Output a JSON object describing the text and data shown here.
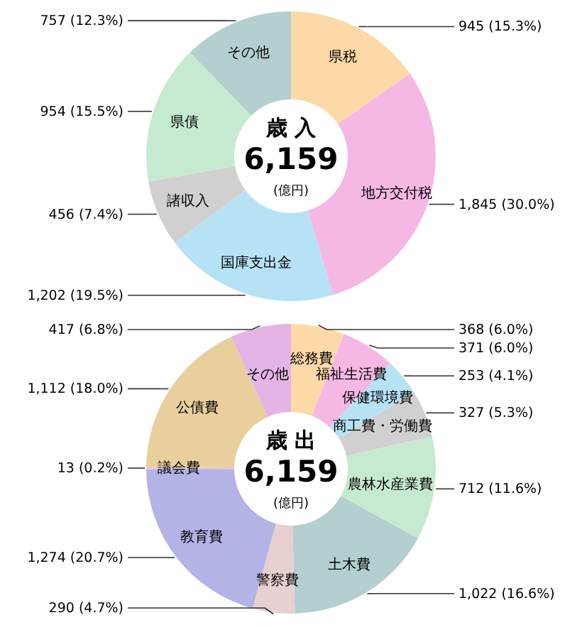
{
  "chart_data": [
    {
      "type": "donut",
      "title": "歳 入",
      "annotations": [
        "6,159",
        "(億円)"
      ],
      "categories": [
        "県税",
        "地方交付税",
        "国庫支出金",
        "諸収入",
        "県債",
        "その他"
      ],
      "values": [
        945,
        1845,
        1202,
        456,
        954,
        757
      ],
      "value_labels": [
        "945 (15.3%)",
        "1,845 (30.0%)",
        "1,202 (19.5%)",
        "456 (7.4%)",
        "954 (15.5%)",
        "757 (12.3%)"
      ],
      "colors": [
        "#fdd9a8",
        "#f5b8e4",
        "#b6e2f5",
        "#d0d0d0",
        "#c6eacf",
        "#b3cfcf"
      ]
    },
    {
      "type": "donut",
      "title": "歳 出",
      "annotations": [
        "6,159",
        "(億円)"
      ],
      "categories": [
        "総務費",
        "福祉生活費",
        "保健環境費",
        "商工費・労働費",
        "農林水産業費",
        "土木費",
        "警察費",
        "教育費",
        "議会費",
        "公債費",
        "その他"
      ],
      "values": [
        368,
        371,
        253,
        327,
        712,
        1022,
        290,
        1274,
        13,
        1112,
        417
      ],
      "value_labels": [
        "368 (6.0%)",
        "371 (6.0%)",
        "253 (4.1%)",
        "327 (5.3%)",
        "712 (11.6%)",
        "1,022 (16.6%)",
        "290 (4.7%)",
        "1,274 (20.7%)",
        "13 (0.2%)",
        "1,112 (18.0%)",
        "417 (6.8%)"
      ],
      "colors": [
        "#fdd9a8",
        "#f5b8e4",
        "#b6e2f5",
        "#d0d0d0",
        "#c6eacf",
        "#b3cfcf",
        "#e8cfd0",
        "#b4b3e6",
        "#f0c0dc",
        "#e8cf9c",
        "#e4b4e4"
      ]
    }
  ]
}
